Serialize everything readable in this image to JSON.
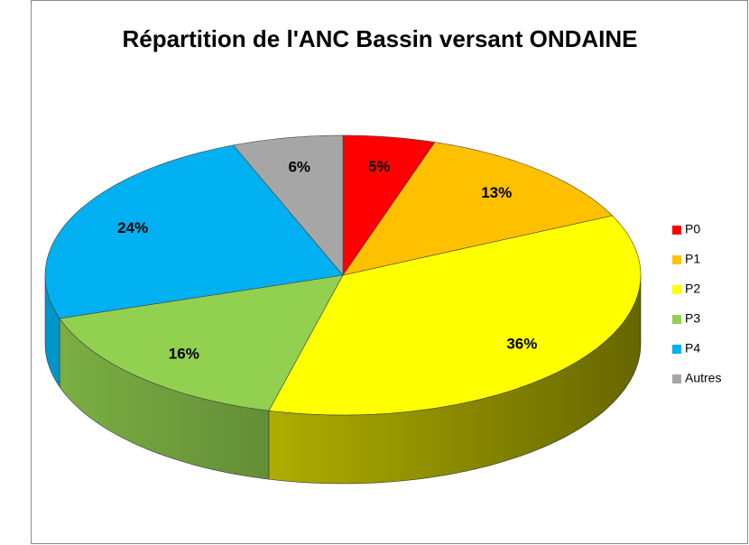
{
  "chart_data": {
    "type": "pie3d",
    "title": "Répartition de l'ANC Bassin versant ONDAINE",
    "categories": [
      "P0",
      "P1",
      "P2",
      "P3",
      "P4",
      "Autres"
    ],
    "values": [
      5,
      13,
      36,
      16,
      24,
      6
    ],
    "value_labels": [
      "5%",
      "13%",
      "36%",
      "16%",
      "24%",
      "6%"
    ],
    "colors": [
      "#ff0000",
      "#ffc000",
      "#ffff00",
      "#92d050",
      "#00b0f0",
      "#a6a6a6"
    ],
    "legend": "right"
  }
}
